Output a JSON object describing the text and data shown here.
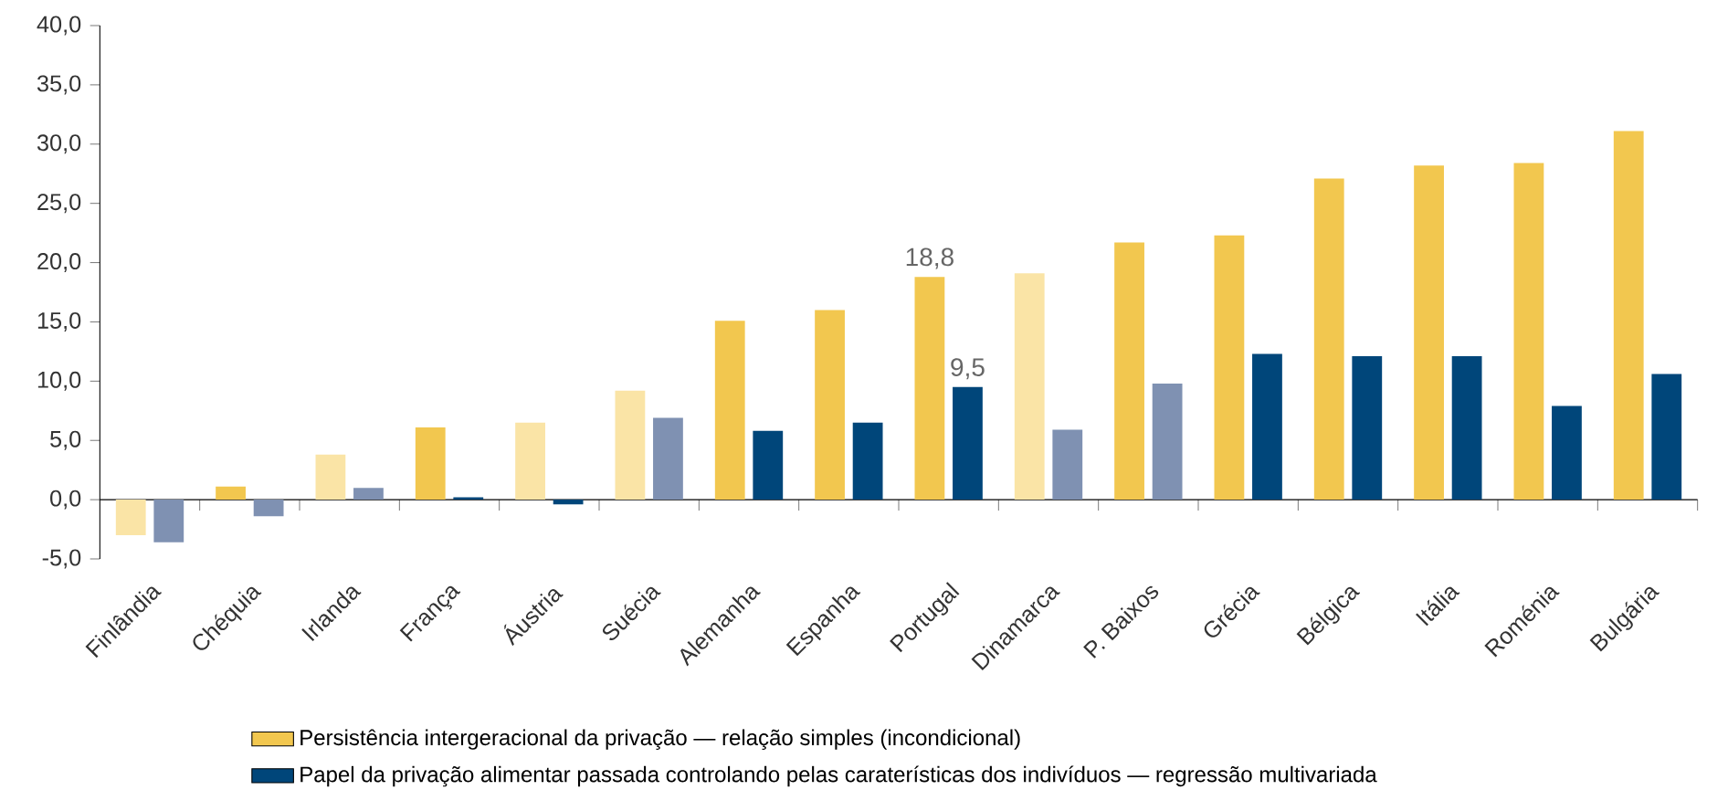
{
  "chart_data": {
    "type": "bar",
    "categories": [
      "Finlândia",
      "Chéquia",
      "Irlanda",
      "França",
      "Áustria",
      "Suécia",
      "Alemanha",
      "Espanha",
      "Portugal",
      "Dinamarca",
      "P. Baixos",
      "Grécia",
      "Bélgica",
      "Itália",
      "Roménia",
      "Bulgária"
    ],
    "series": [
      {
        "name": "Persistência intergeracional da privação — relação simples (incondicional)",
        "color": "#f2c74f",
        "colors": [
          "#fae4a6",
          "#f2c74f",
          "#fae4a6",
          "#f2c74f",
          "#fae4a6",
          "#fae4a6",
          "#f2c74f",
          "#f2c74f",
          "#f2c74f",
          "#fae4a6",
          "#f2c74f",
          "#f2c74f",
          "#f2c74f",
          "#f2c74f",
          "#f2c74f",
          "#f2c74f"
        ],
        "values": [
          -3.0,
          1.1,
          3.8,
          6.1,
          6.5,
          9.2,
          15.1,
          16.0,
          18.8,
          19.1,
          21.7,
          22.3,
          27.1,
          28.2,
          28.4,
          31.1
        ],
        "value_labels": [
          null,
          null,
          null,
          null,
          null,
          null,
          null,
          null,
          "18,8",
          null,
          null,
          null,
          null,
          null,
          null,
          null
        ]
      },
      {
        "name": "Papel da privação alimentar passada controlando pelas caraterísticas dos indivíduos — regressão multivariada",
        "color": "#00467a",
        "colors": [
          "#7f91b2",
          "#7f91b2",
          "#7f91b2",
          "#00467a",
          "#00467a",
          "#7f91b2",
          "#00467a",
          "#00467a",
          "#00467a",
          "#7f91b2",
          "#7f91b2",
          "#00467a",
          "#00467a",
          "#00467a",
          "#00467a",
          "#00467a"
        ],
        "values": [
          -3.6,
          -1.4,
          1.0,
          0.2,
          -0.4,
          6.9,
          5.8,
          6.5,
          9.5,
          5.9,
          9.8,
          12.3,
          12.1,
          12.1,
          7.9,
          10.6
        ],
        "value_labels": [
          null,
          null,
          null,
          null,
          null,
          null,
          null,
          null,
          "9,5",
          null,
          null,
          null,
          null,
          null,
          null,
          null
        ]
      }
    ],
    "ylim": [
      -5,
      40
    ],
    "yticks": [
      {
        "value": -5,
        "label": "-5,0"
      },
      {
        "value": 0,
        "label": "0,0"
      },
      {
        "value": 5,
        "label": "5,0"
      },
      {
        "value": 10,
        "label": "10,0"
      },
      {
        "value": 15,
        "label": "15,0"
      },
      {
        "value": 20,
        "label": "20,0"
      },
      {
        "value": 25,
        "label": "25,0"
      },
      {
        "value": 30,
        "label": "30,0"
      },
      {
        "value": 35,
        "label": "35,0"
      },
      {
        "value": 40,
        "label": "40,0"
      }
    ],
    "legend": "bottom"
  }
}
